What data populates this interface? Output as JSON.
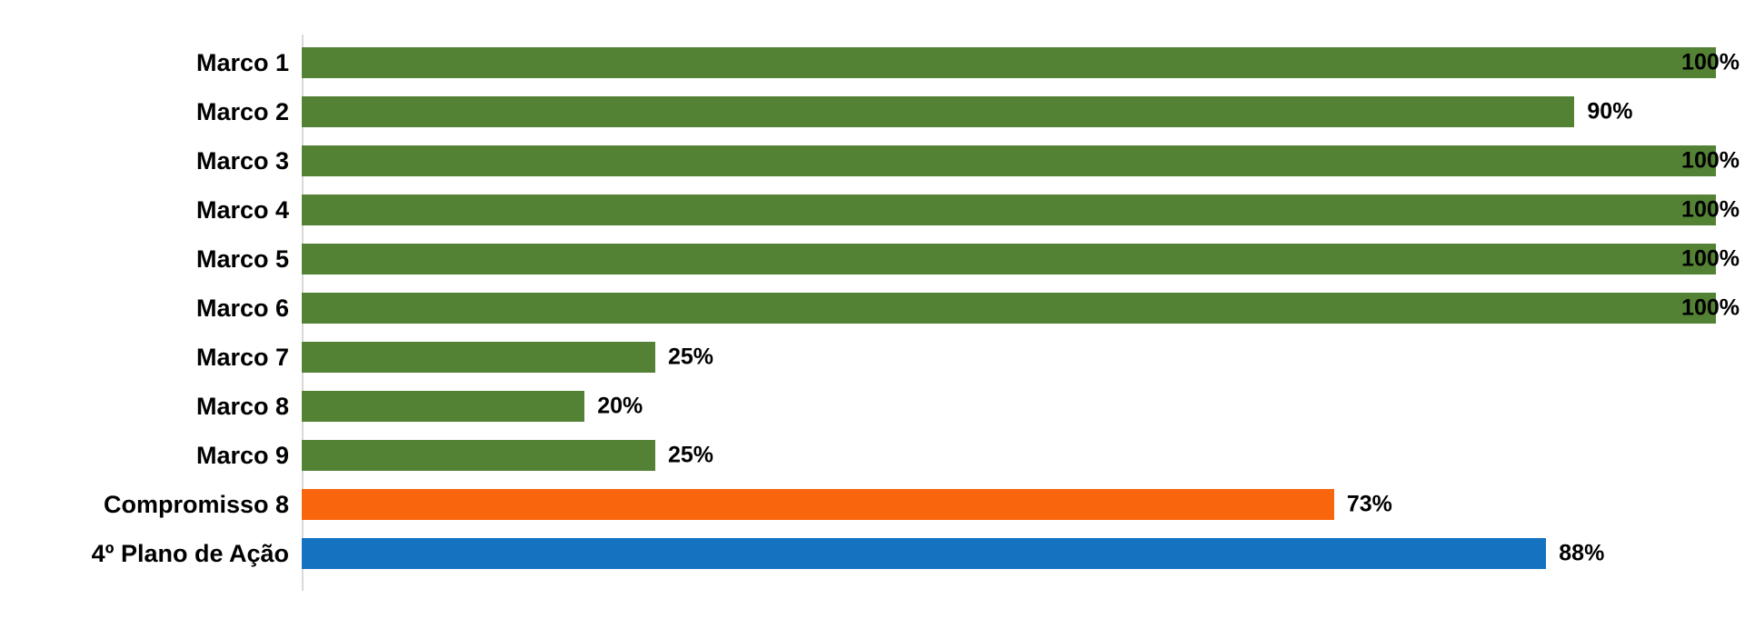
{
  "chart_data": {
    "type": "bar",
    "orientation": "horizontal",
    "title": "",
    "xlabel": "",
    "ylabel": "",
    "xlim": [
      0,
      100
    ],
    "grid": false,
    "legend_position": "none",
    "axis_line_color": "#D9D9D9",
    "label_color": "#000000",
    "categories": [
      "Marco 1",
      "Marco 2",
      "Marco 3",
      "Marco 4",
      "Marco 5",
      "Marco 6",
      "Marco 7",
      "Marco 8",
      "Marco 9",
      "Compromisso 8",
      "4º Plano de Ação"
    ],
    "values": [
      100,
      90,
      100,
      100,
      100,
      100,
      25,
      20,
      25,
      73,
      88
    ],
    "value_labels": [
      "100%",
      "90%",
      "100%",
      "100%",
      "100%",
      "100%",
      "25%",
      "20%",
      "25%",
      "73%",
      "88%"
    ],
    "bar_colors": [
      "#548235",
      "#548235",
      "#548235",
      "#548235",
      "#548235",
      "#548235",
      "#548235",
      "#548235",
      "#548235",
      "#F8650C",
      "#1572C1"
    ]
  }
}
